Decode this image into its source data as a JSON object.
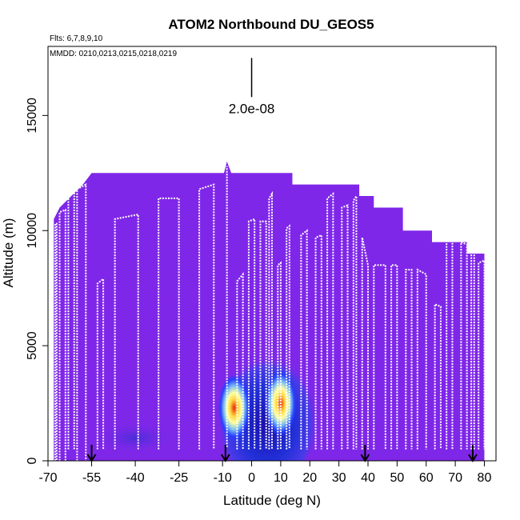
{
  "chart_data": {
    "type": "heatmap",
    "title": "ATOM2 Northbound DU_GEOS5",
    "flights_label": "Flts: 6,7,8,9,10",
    "dates_label": "MMDD: 0210,0213,0215,0218,0219",
    "xlabel": "Latitude (deg N)",
    "ylabel": "Altitude (m)",
    "xlim": [
      -70,
      84
    ],
    "ylim": [
      0,
      18000
    ],
    "x_ticks": [
      -70,
      -55,
      -40,
      -25,
      -10,
      0,
      10,
      20,
      30,
      40,
      50,
      60,
      70,
      80
    ],
    "x_tick_labels": [
      "-70",
      "-55",
      "-40",
      "-25",
      "-10",
      "0",
      "10",
      "20",
      "30",
      "40",
      "50",
      "60",
      "70",
      "80"
    ],
    "y_ticks": [
      0,
      5000,
      10000,
      15000
    ],
    "y_tick_labels": [
      "0",
      "5000",
      "10000",
      "15000"
    ],
    "scale_bar_label": "2.0e-08",
    "scale_bar_x": 0,
    "scale_bar_y_range": [
      15800,
      17500
    ],
    "background_color": "#7f27e8",
    "flight_track_color": "#ffffff",
    "model_ceiling": [
      [
        -68,
        10500
      ],
      [
        -66,
        11000
      ],
      [
        -62,
        11500
      ],
      [
        -58,
        12000
      ],
      [
        -55,
        12500
      ],
      [
        -9.5,
        12500
      ],
      [
        -8.5,
        13000
      ],
      [
        -7,
        12500
      ],
      [
        14,
        12500
      ],
      [
        14,
        12000
      ],
      [
        37,
        12000
      ],
      [
        37,
        11500
      ],
      [
        42,
        11500
      ],
      [
        42,
        11000
      ],
      [
        52,
        11000
      ],
      [
        52,
        10000
      ],
      [
        62,
        10000
      ],
      [
        62,
        9500
      ],
      [
        74,
        9500
      ],
      [
        74,
        9000
      ],
      [
        80,
        9000
      ]
    ],
    "dust_plume": {
      "lat_range": [
        -12,
        23
      ],
      "alt_range": [
        0,
        4500
      ],
      "peak_centers": [
        [
          -6,
          2300
        ],
        [
          10,
          2500
        ]
      ],
      "colorscale": [
        "#7f27e8",
        "#1f10c8",
        "#2740ff",
        "#7ec0f0",
        "#ffffa0",
        "#ffd23c",
        "#e82810"
      ]
    },
    "minor_dust_band": {
      "lat_range": [
        -55,
        -25
      ],
      "alt_range": [
        500,
        1500
      ]
    },
    "flight_tracks": [
      [
        [
          -67.5,
          0
        ],
        [
          -67.5,
          10300
        ],
        [
          -67,
          10300
        ],
        [
          -67,
          0
        ]
      ],
      [
        [
          -66,
          0
        ],
        [
          -66,
          10800
        ],
        [
          -64,
          10900
        ],
        [
          -64,
          0
        ]
      ],
      [
        [
          -63,
          500
        ],
        [
          -63,
          11600
        ],
        [
          -61,
          11700
        ],
        [
          -61,
          500
        ]
      ],
      [
        [
          -60,
          0
        ],
        [
          -60,
          11800
        ],
        [
          -57,
          12000
        ],
        [
          -57,
          0
        ]
      ],
      [
        [
          -53,
          500
        ],
        [
          -53,
          7700
        ],
        [
          -51,
          7900
        ],
        [
          -51,
          500
        ]
      ],
      [
        [
          -47,
          500
        ],
        [
          -47,
          10500
        ],
        [
          -39,
          10700
        ],
        [
          -39,
          500
        ]
      ],
      [
        [
          -32,
          500
        ],
        [
          -32,
          11400
        ],
        [
          -25,
          11400
        ],
        [
          -25,
          500
        ]
      ],
      [
        [
          -18,
          500
        ],
        [
          -18,
          11800
        ],
        [
          -13,
          12000
        ],
        [
          -13,
          500
        ]
      ],
      [
        [
          -8.5,
          600
        ],
        [
          -8.5,
          12800
        ]
      ],
      [
        [
          -5,
          500
        ],
        [
          -5,
          7800
        ],
        [
          -3,
          8100
        ],
        [
          -3,
          500
        ]
      ],
      [
        [
          -1,
          500
        ],
        [
          -1,
          10400
        ],
        [
          1,
          10500
        ],
        [
          1,
          500
        ]
      ],
      [
        [
          3,
          500
        ],
        [
          3,
          10400
        ],
        [
          5,
          10400
        ],
        [
          5,
          500
        ]
      ],
      [
        [
          6,
          500
        ],
        [
          6,
          11400
        ],
        [
          7,
          11600
        ],
        [
          7,
          500
        ]
      ],
      [
        [
          9,
          500
        ],
        [
          9,
          8500
        ],
        [
          10,
          8600
        ],
        [
          10,
          500
        ]
      ],
      [
        [
          12,
          500
        ],
        [
          12,
          10100
        ],
        [
          13,
          10200
        ],
        [
          13,
          500
        ]
      ],
      [
        [
          17,
          500
        ],
        [
          17,
          9800
        ],
        [
          19,
          10000
        ],
        [
          19,
          500
        ]
      ],
      [
        [
          22,
          500
        ],
        [
          22,
          9700
        ],
        [
          24,
          9800
        ],
        [
          24,
          500
        ]
      ],
      [
        [
          26,
          500
        ],
        [
          26,
          11400
        ],
        [
          28,
          11600
        ],
        [
          28,
          500
        ]
      ],
      [
        [
          31,
          500
        ],
        [
          31,
          11000
        ],
        [
          33,
          11100
        ],
        [
          33,
          500
        ]
      ],
      [
        [
          35,
          500
        ],
        [
          35,
          11300
        ],
        [
          36,
          11500
        ],
        [
          36,
          500
        ]
      ],
      [
        [
          38,
          500
        ],
        [
          38,
          9700
        ],
        [
          40,
          8500
        ],
        [
          40,
          500
        ]
      ],
      [
        [
          42,
          500
        ],
        [
          42,
          8500
        ],
        [
          46,
          8500
        ],
        [
          46,
          500
        ]
      ],
      [
        [
          48,
          500
        ],
        [
          48,
          8500
        ],
        [
          50,
          8500
        ],
        [
          50,
          500
        ]
      ],
      [
        [
          53,
          500
        ],
        [
          53,
          8300
        ],
        [
          55,
          8300
        ],
        [
          55,
          500
        ]
      ],
      [
        [
          57,
          500
        ],
        [
          57,
          8300
        ],
        [
          60,
          8100
        ],
        [
          60,
          500
        ]
      ],
      [
        [
          63,
          500
        ],
        [
          63,
          6800
        ],
        [
          65,
          6700
        ],
        [
          65,
          500
        ]
      ],
      [
        [
          67,
          500
        ],
        [
          67,
          9600
        ],
        [
          69,
          9700
        ],
        [
          69,
          500
        ]
      ],
      [
        [
          72,
          500
        ],
        [
          72,
          9500
        ],
        [
          74,
          9400
        ],
        [
          74,
          500
        ]
      ],
      [
        [
          75.5,
          500
        ],
        [
          75.5,
          9200
        ],
        [
          76.5,
          9100
        ],
        [
          76.5,
          500
        ]
      ],
      [
        [
          78,
          500
        ],
        [
          78,
          8600
        ],
        [
          80,
          8700
        ],
        [
          80,
          500
        ]
      ]
    ],
    "arrows_at_latitudes": [
      -55,
      -9,
      39,
      76
    ]
  }
}
